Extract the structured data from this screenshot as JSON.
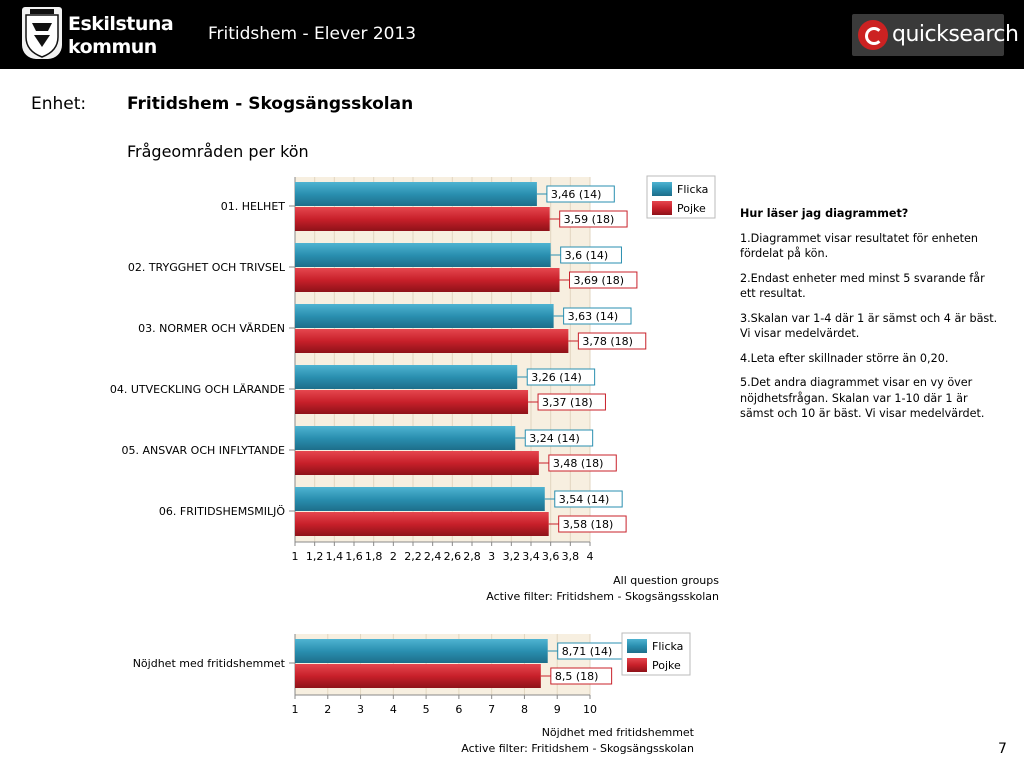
{
  "header": {
    "title": "Fritidshem - Elever 2013",
    "logo_left_line1": "Eskilstuna",
    "logo_left_line2": "kommun",
    "logo_right_text": "quicksearch"
  },
  "unit": {
    "label": "Enhet:",
    "name": "Fritidshem - Skogsängsskolan"
  },
  "section_title": "Frågeområden per kön",
  "colors": {
    "flicka": "#2a8fb0",
    "pojke": "#c8202a",
    "plot_bg": "#f7efe0"
  },
  "chart_data": [
    {
      "type": "bar",
      "orientation": "horizontal",
      "categories": [
        "01. HELHET",
        "02. TRYGGHET OCH TRIVSEL",
        "03. NORMER OCH VÄRDEN",
        "04. UTVECKLING OCH LÄRANDE",
        "05. ANSVAR OCH INFLYTANDE",
        "06. FRITIDSHEMSMILJÖ"
      ],
      "series": [
        {
          "name": "Flicka",
          "values": [
            3.46,
            3.6,
            3.63,
            3.26,
            3.24,
            3.54
          ],
          "labels": [
            "3,46 (14)",
            "3,6 (14)",
            "3,63 (14)",
            "3,26 (14)",
            "3,24 (14)",
            "3,54 (14)"
          ]
        },
        {
          "name": "Pojke",
          "values": [
            3.59,
            3.69,
            3.78,
            3.37,
            3.48,
            3.58
          ],
          "labels": [
            "3,59 (18)",
            "3,69 (18)",
            "3,78 (18)",
            "3,37 (18)",
            "3,48 (18)",
            "3,58 (18)"
          ]
        }
      ],
      "xlim": [
        1,
        4
      ],
      "ticks": [
        "1",
        "1,2",
        "1,4",
        "1,6",
        "1,8",
        "2",
        "2,2",
        "2,4",
        "2,6",
        "2,8",
        "3",
        "3,2",
        "3,4",
        "3,6",
        "3,8",
        "4"
      ],
      "footer_line1": "All question groups",
      "footer_line2": "Active filter: Fritidshem - Skogsängsskolan",
      "legend": [
        "Flicka",
        "Pojke"
      ],
      "legend_position": "top-right"
    },
    {
      "type": "bar",
      "orientation": "horizontal",
      "categories": [
        "Nöjdhet med fritidshemmet"
      ],
      "series": [
        {
          "name": "Flicka",
          "values": [
            8.71
          ],
          "labels": [
            "8,71 (14)"
          ]
        },
        {
          "name": "Pojke",
          "values": [
            8.5
          ],
          "labels": [
            "8,5 (18)"
          ]
        }
      ],
      "xlim": [
        1,
        10
      ],
      "ticks": [
        "1",
        "2",
        "3",
        "4",
        "5",
        "6",
        "7",
        "8",
        "9",
        "10"
      ],
      "footer_line1": "Nöjdhet med fritidshemmet",
      "footer_line2": "Active filter: Fritidshem - Skogsängsskolan",
      "legend": [
        "Flicka",
        "Pojke"
      ],
      "legend_position": "top-right"
    }
  ],
  "info": {
    "heading": "Hur läser jag diagrammet?",
    "points": [
      "1.Diagrammet visar resultatet för enheten fördelat på kön.",
      "2.Endast enheter med minst  5 svarande får ett resultat.",
      "3.Skalan var 1-4 där 1 är sämst och 4 är bäst. Vi visar medelvärdet.",
      "4.Leta efter skillnader större än 0,20.",
      "5.Det andra diagrammet visar en vy över nöjdhetsfrågan. Skalan var 1-10 där 1 är sämst och 10 är bäst. Vi visar medelvärdet."
    ]
  },
  "page_number": "7"
}
